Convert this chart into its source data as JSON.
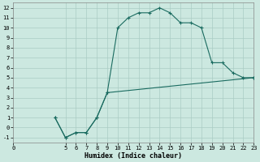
{
  "xlabel": "Humidex (Indice chaleur)",
  "background_color": "#cce8e0",
  "grid_color": "#aaccc4",
  "line_color": "#1a6b60",
  "xlim": [
    0,
    23
  ],
  "ylim": [
    -1.5,
    12.5
  ],
  "xticks": [
    0,
    5,
    6,
    7,
    8,
    9,
    10,
    11,
    12,
    13,
    14,
    15,
    16,
    17,
    18,
    19,
    20,
    21,
    22,
    23
  ],
  "yticks": [
    -1,
    0,
    1,
    2,
    3,
    4,
    5,
    6,
    7,
    8,
    9,
    10,
    11,
    12
  ],
  "curve1_x": [
    4,
    5,
    6,
    7,
    8,
    9,
    10,
    11,
    12,
    13,
    14,
    15,
    16,
    17,
    18,
    19,
    20,
    21,
    22,
    23
  ],
  "curve1_y": [
    1,
    -1,
    -0.5,
    -0.5,
    1,
    3.5,
    10,
    11,
    11.5,
    11.5,
    12,
    11.5,
    10.5,
    10.5,
    10,
    6.5,
    6.5,
    5.5,
    5,
    5
  ],
  "curve2_x": [
    4,
    5,
    6,
    7,
    8,
    9,
    23
  ],
  "curve2_y": [
    1,
    -1,
    -0.5,
    -0.5,
    1,
    3.5,
    5
  ],
  "xlabel_fontsize": 6.0,
  "tick_fontsize": 5.0
}
